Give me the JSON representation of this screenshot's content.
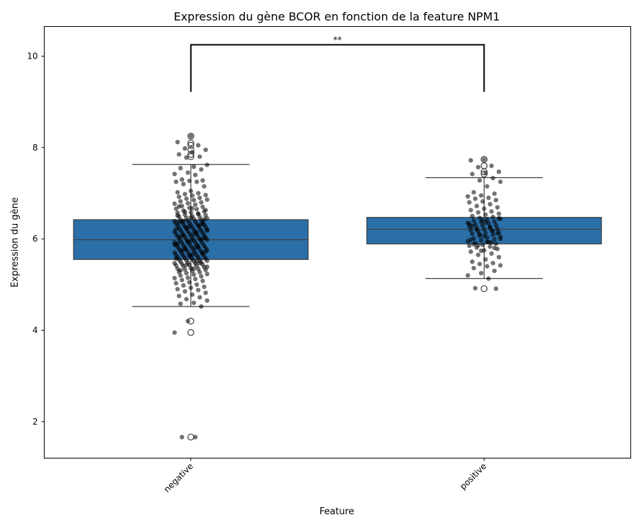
{
  "chart_data": {
    "type": "box",
    "title": "Expression du gène BCOR en fonction de la feature NPM1",
    "xlabel": "Feature",
    "ylabel": "Expression du gène",
    "categories": [
      "negative",
      "positive"
    ],
    "ylim": [
      1.2,
      10.65
    ],
    "yticks": [
      2,
      4,
      6,
      8,
      10
    ],
    "box_color": "#2b6fa8",
    "point_color": "#000000",
    "significance": {
      "label": "**",
      "pair": [
        "negative",
        "positive"
      ],
      "bracket_y": 10.25,
      "leg_bottom": 9.22
    },
    "boxes": [
      {
        "name": "negative",
        "whislo": 4.52,
        "q1": 5.55,
        "med": 5.98,
        "q3": 6.42,
        "whishi": 7.63,
        "fliers": [
          8.25,
          8.1,
          8.05,
          7.95,
          7.85,
          7.8,
          4.2,
          3.95,
          1.66
        ]
      },
      {
        "name": "positive",
        "whislo": 5.13,
        "q1": 5.89,
        "med": 6.21,
        "q3": 6.47,
        "whishi": 7.34,
        "fliers": [
          7.74,
          7.6,
          7.47,
          7.42,
          4.91
        ]
      }
    ],
    "points": [
      {
        "name": "negative",
        "values": [
          8.25,
          8.12,
          8.05,
          7.98,
          7.95,
          7.9,
          7.85,
          7.8,
          7.78,
          7.62,
          7.58,
          7.55,
          7.52,
          7.45,
          7.42,
          7.4,
          7.3,
          7.28,
          7.27,
          7.25,
          7.25,
          7.2,
          7.15,
          7.05,
          7.02,
          7.0,
          6.98,
          6.96,
          6.95,
          6.92,
          6.9,
          6.88,
          6.86,
          6.85,
          6.82,
          6.8,
          6.78,
          6.77,
          6.75,
          6.72,
          6.7,
          6.68,
          6.66,
          6.65,
          6.62,
          6.6,
          6.58,
          6.57,
          6.55,
          6.53,
          6.52,
          6.5,
          6.49,
          6.48,
          6.46,
          6.45,
          6.44,
          6.42,
          6.41,
          6.4,
          6.39,
          6.38,
          6.37,
          6.36,
          6.35,
          6.34,
          6.33,
          6.32,
          6.31,
          6.3,
          6.29,
          6.28,
          6.27,
          6.26,
          6.25,
          6.24,
          6.23,
          6.22,
          6.21,
          6.2,
          6.19,
          6.18,
          6.17,
          6.16,
          6.15,
          6.14,
          6.13,
          6.12,
          6.11,
          6.1,
          6.09,
          6.08,
          6.07,
          6.06,
          6.05,
          6.04,
          6.03,
          6.02,
          6.01,
          6.0,
          5.99,
          5.98,
          5.97,
          5.96,
          5.95,
          5.94,
          5.93,
          5.92,
          5.91,
          5.9,
          5.89,
          5.88,
          5.87,
          5.86,
          5.85,
          5.84,
          5.83,
          5.82,
          5.81,
          5.8,
          5.79,
          5.78,
          5.77,
          5.76,
          5.75,
          5.74,
          5.73,
          5.72,
          5.71,
          5.7,
          5.69,
          5.68,
          5.67,
          5.66,
          5.65,
          5.64,
          5.63,
          5.62,
          5.61,
          5.6,
          5.59,
          5.58,
          5.57,
          5.56,
          5.55,
          5.54,
          5.53,
          5.52,
          5.51,
          5.5,
          5.49,
          5.48,
          5.47,
          5.46,
          5.45,
          5.44,
          5.43,
          5.42,
          5.41,
          5.4,
          5.38,
          5.36,
          5.35,
          5.34,
          5.33,
          5.32,
          5.3,
          5.28,
          5.27,
          5.25,
          5.23,
          5.22,
          5.2,
          5.18,
          5.15,
          5.14,
          5.12,
          5.1,
          5.08,
          5.05,
          5.03,
          5.0,
          4.98,
          4.95,
          4.93,
          4.9,
          4.88,
          4.85,
          4.82,
          4.78,
          4.75,
          4.72,
          4.68,
          4.65,
          4.6,
          4.58,
          4.52,
          4.2,
          3.95,
          1.66,
          1.66,
          6.33,
          6.27,
          6.21,
          6.14,
          6.08,
          6.02,
          5.96,
          5.9,
          5.84,
          5.78,
          5.72,
          5.66,
          6.36,
          6.3,
          6.24,
          6.18,
          6.11,
          6.05,
          5.99,
          5.93,
          5.87,
          5.81,
          5.75,
          5.69,
          5.63,
          5.57,
          5.51,
          6.39,
          6.43,
          6.47,
          6.51,
          6.55,
          6.59,
          6.63,
          6.67,
          6.71,
          5.47,
          5.43,
          5.39,
          5.35,
          5.31
        ]
      },
      {
        "name": "positive",
        "values": [
          7.74,
          7.72,
          7.6,
          7.57,
          7.47,
          7.44,
          7.42,
          7.33,
          7.28,
          7.25,
          7.15,
          7.02,
          6.99,
          6.95,
          6.93,
          6.9,
          6.88,
          6.85,
          6.82,
          6.8,
          6.76,
          6.72,
          6.69,
          6.66,
          6.63,
          6.6,
          6.58,
          6.55,
          6.53,
          6.5,
          6.48,
          6.46,
          6.44,
          6.42,
          6.4,
          6.38,
          6.37,
          6.35,
          6.34,
          6.32,
          6.3,
          6.29,
          6.27,
          6.25,
          6.24,
          6.22,
          6.21,
          6.19,
          6.18,
          6.16,
          6.14,
          6.13,
          6.11,
          6.09,
          6.07,
          6.05,
          6.03,
          6.01,
          5.99,
          5.97,
          5.95,
          5.93,
          5.91,
          5.89,
          5.87,
          5.85,
          5.83,
          5.81,
          5.78,
          5.75,
          5.72,
          5.68,
          5.65,
          5.6,
          5.55,
          5.5,
          5.47,
          5.45,
          5.42,
          5.4,
          5.36,
          5.3,
          5.25,
          5.2,
          5.13,
          4.92,
          4.91,
          6.41,
          6.33,
          6.26,
          6.2,
          6.12,
          6.06,
          5.98,
          5.92,
          5.86,
          6.45,
          6.36,
          6.28,
          6.17,
          6.1,
          6.0,
          5.94,
          5.88,
          5.8,
          5.74
        ]
      }
    ]
  }
}
